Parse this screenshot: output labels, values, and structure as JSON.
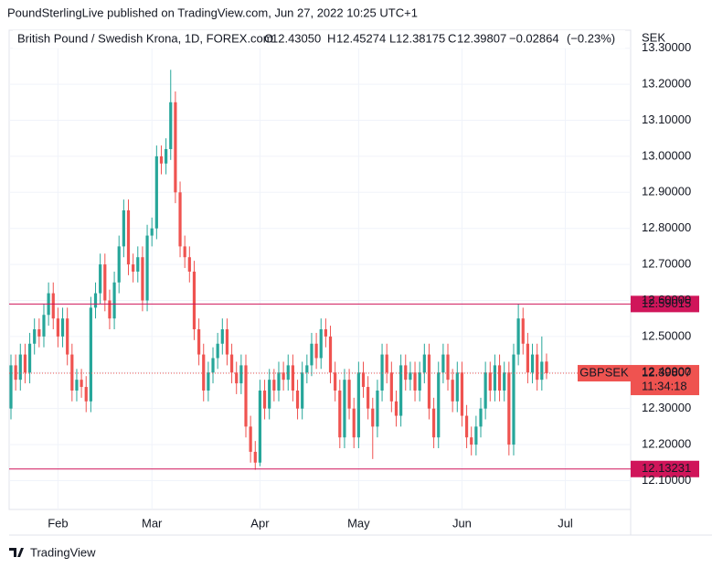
{
  "header": "PoundSterlingLive published on TradingView.com, Jun 27, 2022 10:25 UTC+1",
  "footer": "TradingView",
  "chart_data": {
    "type": "candlestick",
    "title": "British Pound / Swedish Krona, 1D, FOREX.com",
    "ohlc_legend": [
      {
        "label": "O",
        "value": {
          "value": 12.4305,
          "label": "12.43050"
        }
      },
      {
        "label": "H",
        "value": 12.45274
      },
      {
        "label": "L",
        "value": 12.38175
      },
      {
        "label": "C",
        "value": 12.39807
      }
    ],
    "change": {
      "value": -0.02864,
      "label": "−0.02864"
    },
    "change_percent": {
      "value": -0.23,
      "label": "(−0.23%)"
    },
    "y_axis_label": "SEK",
    "up_color": "#26a69a",
    "down_color": "#ef5350",
    "categories": [
      null,
      null,
      null,
      null,
      null,
      null,
      null,
      null,
      null,
      null,
      "Feb",
      null,
      null,
      null,
      null,
      null,
      null,
      null,
      null,
      null,
      null,
      null,
      null,
      null,
      null,
      null,
      null,
      null,
      null,
      null,
      "Mar",
      null,
      null,
      null,
      null,
      null,
      null,
      null,
      null,
      null,
      null,
      null,
      null,
      null,
      null,
      null,
      null,
      null,
      null,
      null,
      null,
      null,
      null,
      "Apr",
      null,
      null,
      null,
      null,
      null,
      null,
      null,
      null,
      null,
      null,
      null,
      null,
      null,
      null,
      null,
      null,
      null,
      null,
      null,
      null,
      "May",
      null,
      null,
      null,
      null,
      null,
      null,
      null,
      null,
      null,
      null,
      null,
      null,
      null,
      null,
      null,
      null,
      null,
      null,
      null,
      null,
      null,
      "Jun",
      null,
      null,
      null,
      null,
      null,
      null,
      null,
      null,
      null,
      null,
      null,
      null,
      null,
      null,
      null,
      null,
      null,
      null,
      null,
      null,
      null,
      "Jul"
    ],
    "series": [
      {
        "name": "GBPSEK",
        "open": [
          12.3,
          12.42,
          12.38,
          12.45,
          12.4,
          12.48,
          12.52,
          12.5,
          12.56,
          12.62,
          12.55,
          12.5,
          12.55,
          12.45,
          12.35,
          12.38,
          12.36,
          12.32,
          12.58,
          12.62,
          12.7,
          12.6,
          12.55,
          12.65,
          12.75,
          12.85,
          12.7,
          12.68,
          12.72,
          12.6,
          12.78,
          12.8,
          13.0,
          12.98,
          13.02,
          13.15,
          12.9,
          12.75,
          12.72,
          12.68,
          12.52,
          12.45,
          12.35,
          12.4,
          12.44,
          12.48,
          12.52,
          12.45,
          12.4,
          12.37,
          12.42,
          12.25,
          12.18,
          12.15,
          12.35,
          12.3,
          12.38,
          12.35,
          12.4,
          12.38,
          12.42,
          12.35,
          12.3,
          12.4,
          12.42,
          12.48,
          12.44,
          12.52,
          12.5,
          12.4,
          12.35,
          12.22,
          12.38,
          12.3,
          12.22,
          12.4,
          12.36,
          12.3,
          12.25,
          12.35,
          12.45,
          12.4,
          12.32,
          12.28,
          12.42,
          12.38,
          12.4,
          12.35,
          12.4,
          12.45,
          12.3,
          12.22,
          12.4,
          12.45,
          12.38,
          12.32,
          12.4,
          12.28,
          12.22,
          12.2,
          12.25,
          12.3,
          12.4,
          12.35,
          12.42,
          12.35,
          12.4,
          12.2,
          12.45,
          12.55,
          12.48,
          12.4,
          12.45,
          12.38,
          12.4305,
          null,
          null,
          null,
          null
        ],
        "high": [
          12.45,
          12.45,
          12.48,
          12.48,
          12.51,
          12.55,
          12.55,
          12.59,
          12.65,
          12.65,
          12.58,
          12.58,
          12.58,
          12.48,
          12.41,
          12.41,
          12.39,
          12.61,
          12.65,
          12.73,
          12.73,
          12.63,
          12.68,
          12.78,
          12.88,
          12.88,
          12.73,
          12.75,
          12.75,
          12.81,
          12.83,
          13.03,
          13.03,
          13.05,
          13.24,
          13.18,
          12.93,
          12.78,
          12.75,
          12.71,
          12.55,
          12.48,
          12.43,
          12.47,
          12.51,
          12.55,
          12.55,
          12.48,
          12.43,
          12.45,
          12.45,
          12.28,
          12.21,
          12.38,
          12.38,
          12.41,
          12.41,
          12.43,
          12.43,
          12.45,
          12.45,
          12.38,
          12.43,
          12.45,
          12.51,
          12.51,
          12.55,
          12.55,
          12.53,
          12.43,
          12.38,
          12.41,
          12.41,
          12.33,
          12.43,
          12.43,
          12.39,
          12.33,
          12.38,
          12.48,
          12.48,
          12.43,
          12.35,
          12.45,
          12.45,
          12.43,
          12.43,
          12.43,
          12.48,
          12.48,
          12.33,
          12.43,
          12.48,
          12.48,
          12.41,
          12.43,
          12.43,
          12.31,
          12.25,
          12.28,
          12.33,
          12.43,
          12.43,
          12.45,
          12.45,
          12.43,
          12.43,
          12.48,
          12.59,
          12.58,
          12.51,
          12.48,
          12.48,
          12.5,
          12.45274,
          null,
          null,
          null,
          null
        ],
        "low": [
          12.27,
          12.35,
          12.35,
          12.37,
          12.37,
          12.45,
          12.47,
          12.47,
          12.53,
          12.52,
          12.47,
          12.47,
          12.42,
          12.32,
          12.32,
          12.33,
          12.29,
          12.29,
          12.55,
          12.59,
          12.57,
          12.52,
          12.52,
          12.62,
          12.72,
          12.67,
          12.65,
          12.65,
          12.57,
          12.57,
          12.75,
          12.77,
          12.95,
          12.95,
          12.99,
          12.87,
          12.72,
          12.69,
          12.65,
          12.49,
          12.42,
          12.32,
          12.32,
          12.37,
          12.41,
          12.45,
          12.42,
          12.37,
          12.34,
          12.34,
          12.22,
          12.15,
          12.13,
          12.14,
          12.27,
          12.27,
          12.32,
          12.32,
          12.35,
          12.35,
          12.32,
          12.27,
          12.27,
          12.37,
          12.39,
          12.41,
          12.41,
          12.47,
          12.37,
          12.32,
          12.19,
          12.19,
          12.27,
          12.19,
          12.19,
          12.33,
          12.27,
          12.16,
          12.22,
          12.32,
          12.37,
          12.29,
          12.25,
          12.25,
          12.35,
          12.35,
          12.32,
          12.32,
          12.37,
          12.27,
          12.19,
          12.19,
          12.37,
          12.35,
          12.29,
          12.29,
          12.25,
          12.19,
          12.17,
          12.17,
          12.22,
          12.27,
          12.32,
          12.32,
          12.32,
          12.32,
          12.17,
          12.17,
          12.42,
          12.45,
          12.37,
          12.37,
          12.35,
          12.35,
          12.38175,
          null,
          null,
          null,
          null
        ],
        "close": [
          12.42,
          12.38,
          12.45,
          12.4,
          12.48,
          12.52,
          12.5,
          12.56,
          12.62,
          12.55,
          12.5,
          12.55,
          12.45,
          12.35,
          12.38,
          12.36,
          12.32,
          12.58,
          12.62,
          12.7,
          12.6,
          12.55,
          12.65,
          12.75,
          12.85,
          12.7,
          12.68,
          12.72,
          12.6,
          12.78,
          12.8,
          13.0,
          12.98,
          13.02,
          13.15,
          12.9,
          12.75,
          12.72,
          12.68,
          12.52,
          12.45,
          12.35,
          12.4,
          12.44,
          12.48,
          12.52,
          12.45,
          12.4,
          12.37,
          12.42,
          12.25,
          12.18,
          12.15,
          12.35,
          12.3,
          12.38,
          12.35,
          12.4,
          12.38,
          12.42,
          12.35,
          12.3,
          12.4,
          12.42,
          12.48,
          12.44,
          12.52,
          12.5,
          12.4,
          12.35,
          12.22,
          12.38,
          12.3,
          12.22,
          12.4,
          12.36,
          12.3,
          12.25,
          12.35,
          12.45,
          12.4,
          12.32,
          12.28,
          12.42,
          12.38,
          12.4,
          12.35,
          12.4,
          12.45,
          12.3,
          12.22,
          12.4,
          12.45,
          12.38,
          12.32,
          12.4,
          12.28,
          12.22,
          12.2,
          12.25,
          12.3,
          12.4,
          12.35,
          12.42,
          12.35,
          12.4,
          12.2,
          12.45,
          12.55,
          12.48,
          12.4,
          12.45,
          12.38,
          12.43,
          12.39807,
          null,
          null,
          null,
          null
        ],
        "last_price": 12.39807,
        "countdown": "11:34:18"
      }
    ],
    "levels": [
      12.59015,
      12.13231
    ],
    "level_color": "#d0155a",
    "ylim": [
      12.02,
      13.35
    ],
    "yticks": [
      {
        "value": 12.1,
        "label": "12.10000"
      },
      {
        "value": 12.2,
        "label": "12.20000"
      },
      {
        "value": 12.3,
        "label": "12.30000"
      },
      {
        "value": 12.4,
        "label": "12.40000"
      },
      {
        "value": 12.5,
        "label": "12.50000"
      },
      {
        "value": 12.6,
        "label": "12.60000"
      },
      {
        "value": 12.7,
        "label": "12.70000"
      },
      {
        "value": 12.8,
        "label": "12.80000"
      },
      {
        "value": 12.9,
        "label": "12.90000"
      },
      {
        "value": 13.0,
        "label": "13.00000"
      },
      {
        "value": 13.1,
        "label": "13.10000"
      },
      {
        "value": 13.2,
        "label": "13.20000"
      },
      {
        "value": 13.3,
        "label": "13.30000"
      }
    ],
    "grid": true
  }
}
